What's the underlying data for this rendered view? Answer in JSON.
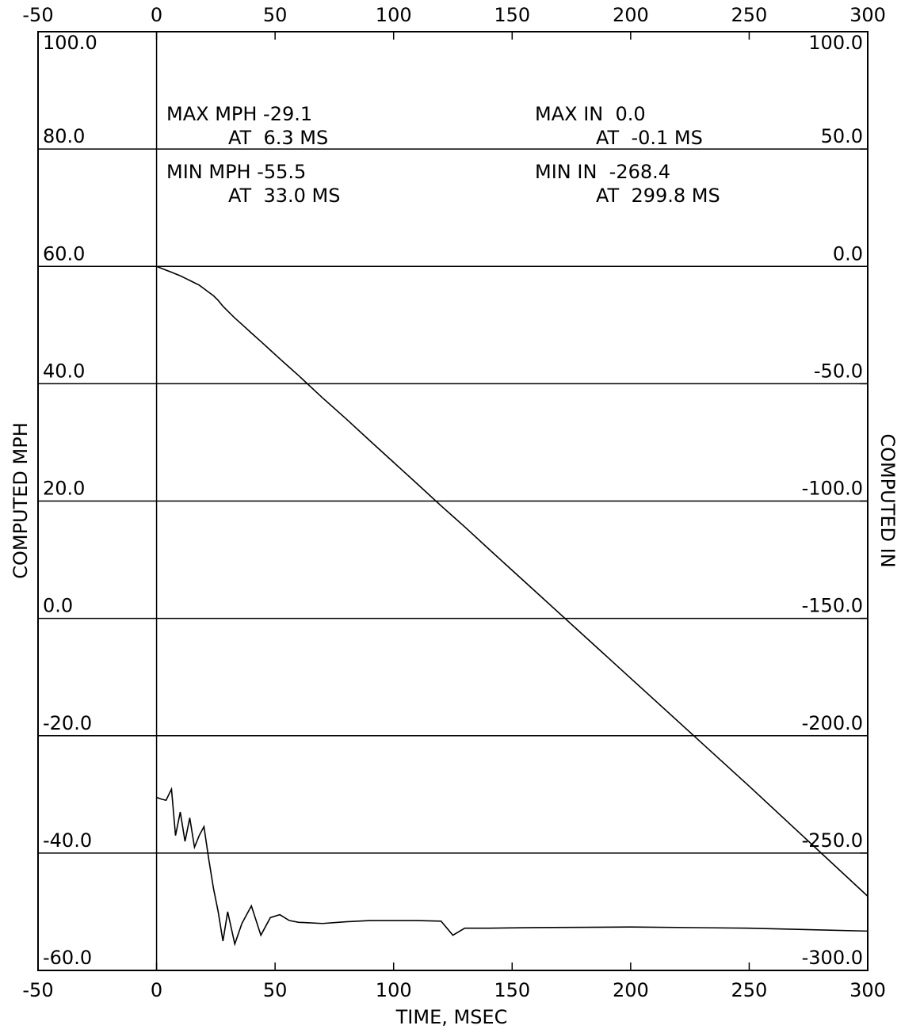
{
  "chart_data": {
    "type": "line",
    "x_label": "TIME, MSEC",
    "y_label": "COMPUTED MPH",
    "y2_label": "COMPUTED IN",
    "annotations": [
      "MAX MPH -29.1",
      "AT  6.3 MS",
      "MIN MPH -55.5",
      "AT  33.0 MS",
      "MAX IN  0.0",
      "AT  -0.1 MS",
      "MIN IN  -268.4",
      "AT  299.8 MS"
    ],
    "x": [
      0,
      2,
      4,
      6.3,
      8,
      10,
      12,
      14,
      16,
      18,
      20,
      22,
      24,
      26,
      28,
      30,
      33,
      36,
      40,
      44,
      48,
      52,
      56,
      60,
      70,
      80,
      90,
      100,
      110,
      120,
      125,
      130,
      140,
      160,
      200,
      250,
      300
    ],
    "series": [
      {
        "name": "MPH",
        "color": "#000000",
        "axis": "y",
        "values": [
          -30.5,
          -30.8,
          -31.0,
          -29.1,
          -37,
          -33,
          -38,
          -34,
          -39,
          -37,
          -35.5,
          -41,
          -46,
          -50,
          -55,
          -50,
          -55.5,
          -52,
          -49,
          -54,
          -51,
          -50.5,
          -51.5,
          -51.8,
          -52,
          -51.7,
          -51.5,
          -51.5,
          -51.5,
          -51.6,
          -54,
          -52.8,
          -52.8,
          -52.7,
          -52.6,
          -52.8,
          -53.3
        ]
      },
      {
        "name": "IN",
        "color": "#000000",
        "axis": "y2",
        "values": [
          0,
          -0.8,
          -1.6,
          -2.5,
          -3.2,
          -4,
          -5,
          -6,
          -7,
          -8,
          -9.5,
          -11,
          -12.5,
          -14.5,
          -17,
          -19,
          -22,
          -24.7,
          -28.4,
          -32,
          -35.7,
          -39.4,
          -43,
          -46.6,
          -56,
          -65,
          -74.3,
          -83.5,
          -92.7,
          -102,
          -106.5,
          -111,
          -120.3,
          -138.7,
          -175.5,
          -221.5,
          -268.4
        ]
      }
    ],
    "xlim": [
      -50,
      300
    ],
    "xticks": [
      -50,
      0,
      50,
      100,
      150,
      200,
      250,
      300
    ],
    "ylim": [
      -60,
      100
    ],
    "yticks": [
      {
        "value": -60,
        "label": "-60.0"
      },
      {
        "value": -40,
        "label": "-40.0"
      },
      {
        "value": -20,
        "label": "-20.0"
      },
      {
        "value": 0,
        "label": "0.0"
      },
      {
        "value": 20,
        "label": "20.0"
      },
      {
        "value": 40,
        "label": "40.0"
      },
      {
        "value": 60,
        "label": "60.0"
      },
      {
        "value": 80,
        "label": "80.0"
      },
      {
        "value": 100,
        "label": "100.0"
      }
    ],
    "y2lim": [
      -300,
      100
    ],
    "y2ticks": [
      {
        "value": -300,
        "label": "-300.0"
      },
      {
        "value": -250,
        "label": "-250.0"
      },
      {
        "value": -200,
        "label": "-200.0"
      },
      {
        "value": -150,
        "label": "-150.0"
      },
      {
        "value": -100,
        "label": "-100.0"
      },
      {
        "value": -50,
        "label": "-50.0"
      },
      {
        "value": 0,
        "label": "0.0"
      },
      {
        "value": 50,
        "label": "50.0"
      },
      {
        "value": 100,
        "label": "100.0"
      }
    ],
    "grid": true
  }
}
